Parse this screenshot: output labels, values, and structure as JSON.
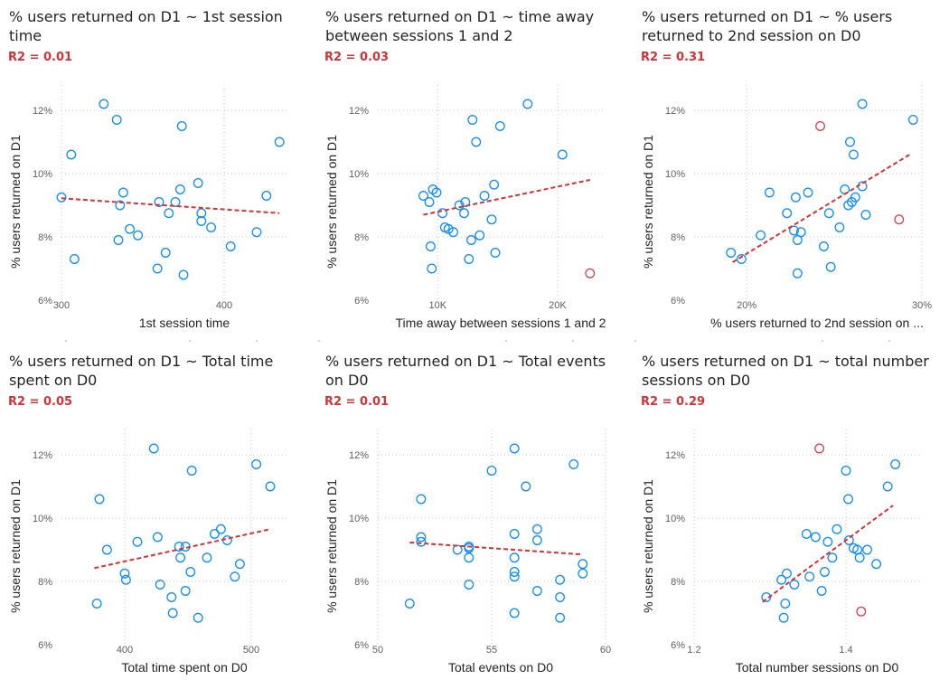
{
  "chart_data": [
    {
      "type": "scatter",
      "title": "% users returned on D1 ~ 1st session time",
      "r2": "R2 = 0.01",
      "xlabel": "1st session time",
      "ylabel": "% users returned on D1",
      "xlim": [
        300,
        440
      ],
      "ylim": [
        6,
        12.8
      ],
      "xticks": [
        300,
        400
      ],
      "xtick_labels": [
        "300",
        "400"
      ],
      "yticks": [
        6,
        8,
        10,
        12
      ],
      "ytick_labels": [
        "6%",
        "8%",
        "10%",
        "12%"
      ],
      "points": [
        [
          300,
          9.25
        ],
        [
          306,
          10.6
        ],
        [
          308,
          7.3
        ],
        [
          326,
          12.2
        ],
        [
          334,
          11.7
        ],
        [
          335,
          7.9
        ],
        [
          336,
          9.0
        ],
        [
          338,
          9.4
        ],
        [
          342,
          8.25
        ],
        [
          347,
          8.05
        ],
        [
          359,
          7.0
        ],
        [
          360,
          9.1
        ],
        [
          364,
          7.5
        ],
        [
          366,
          8.75
        ],
        [
          370,
          9.1
        ],
        [
          373,
          9.5
        ],
        [
          374,
          11.5
        ],
        [
          375,
          6.8
        ],
        [
          384,
          9.7
        ],
        [
          386,
          8.5
        ],
        [
          386,
          8.75
        ],
        [
          392,
          8.3
        ],
        [
          404,
          7.7
        ],
        [
          420,
          8.15
        ],
        [
          426,
          9.3
        ],
        [
          434,
          11.0
        ]
      ],
      "outliers": [],
      "trend": [
        [
          300,
          9.22
        ],
        [
          434,
          8.75
        ]
      ]
    },
    {
      "type": "scatter",
      "title": "% users returned on D1 ~ time away between sessions 1 and 2",
      "r2": "R2 = 0.03",
      "xlabel": "Time away between sessions 1 and 2",
      "ylabel": "% users returned on D1",
      "xlim": [
        5000,
        24000
      ],
      "ylim": [
        6,
        12.8
      ],
      "xticks": [
        10000,
        20000
      ],
      "xtick_labels": [
        "10K",
        "20K"
      ],
      "yticks": [
        6,
        8,
        10,
        12
      ],
      "ytick_labels": [
        "6%",
        "8%",
        "10%",
        "12%"
      ],
      "points": [
        [
          8800,
          9.3
        ],
        [
          9300,
          9.1
        ],
        [
          9400,
          7.7
        ],
        [
          9500,
          7.0
        ],
        [
          9600,
          9.5
        ],
        [
          9900,
          9.4
        ],
        [
          10400,
          8.75
        ],
        [
          10600,
          8.3
        ],
        [
          10900,
          8.25
        ],
        [
          11300,
          8.15
        ],
        [
          11800,
          9.0
        ],
        [
          12200,
          8.75
        ],
        [
          12300,
          9.1
        ],
        [
          12600,
          7.3
        ],
        [
          12800,
          7.9
        ],
        [
          12900,
          11.7
        ],
        [
          13200,
          11.0
        ],
        [
          13500,
          8.05
        ],
        [
          13900,
          9.3
        ],
        [
          14500,
          8.55
        ],
        [
          14700,
          9.65
        ],
        [
          14800,
          7.5
        ],
        [
          15200,
          11.5
        ],
        [
          17500,
          12.2
        ],
        [
          20400,
          10.6
        ]
      ],
      "outliers": [
        [
          22700,
          6.85
        ]
      ],
      "trend": [
        [
          8800,
          8.7
        ],
        [
          22700,
          9.8
        ]
      ]
    },
    {
      "type": "scatter",
      "title": "% users returned on D1 ~ % users returned to 2nd session on D0",
      "r2": "R2 = 0.31",
      "xlabel": "% users returned to 2nd session on ...",
      "ylabel": "% users returned on D1",
      "xlim": [
        17,
        30
      ],
      "ylim": [
        6,
        12.8
      ],
      "xticks": [
        20,
        30
      ],
      "xtick_labels": [
        "20%",
        "30%"
      ],
      "yticks": [
        6,
        8,
        10,
        12
      ],
      "ytick_labels": [
        "6%",
        "8%",
        "10%",
        "12%"
      ],
      "points": [
        [
          19.1,
          7.5
        ],
        [
          19.7,
          7.3
        ],
        [
          20.8,
          8.05
        ],
        [
          21.3,
          9.4
        ],
        [
          22.3,
          8.75
        ],
        [
          22.7,
          8.2
        ],
        [
          22.8,
          9.25
        ],
        [
          22.9,
          7.9
        ],
        [
          22.9,
          6.85
        ],
        [
          23.1,
          8.15
        ],
        [
          23.5,
          9.4
        ],
        [
          24.4,
          7.7
        ],
        [
          24.7,
          8.75
        ],
        [
          24.8,
          7.05
        ],
        [
          25.3,
          8.3
        ],
        [
          25.6,
          9.5
        ],
        [
          25.8,
          9.0
        ],
        [
          25.9,
          11.0
        ],
        [
          26.0,
          9.1
        ],
        [
          26.1,
          10.6
        ],
        [
          26.2,
          9.25
        ],
        [
          26.6,
          9.6
        ],
        [
          26.8,
          8.7
        ],
        [
          26.6,
          12.2
        ],
        [
          29.5,
          11.7
        ]
      ],
      "outliers": [
        [
          24.2,
          11.5
        ],
        [
          28.7,
          8.55
        ]
      ],
      "trend": [
        [
          19.2,
          7.2
        ],
        [
          29.3,
          10.6
        ]
      ]
    },
    {
      "type": "scatter",
      "title": "% users returned on D1 ~ Total time spent on D0",
      "r2": "R2 = 0.05",
      "xlabel": "Total time spent on D0",
      "ylabel": "% users returned on D1",
      "xlim": [
        350,
        530
      ],
      "ylim": [
        6,
        12.8
      ],
      "xticks": [
        400,
        500
      ],
      "xtick_labels": [
        "400",
        "500"
      ],
      "yticks": [
        6,
        8,
        10,
        12
      ],
      "ytick_labels": [
        "6%",
        "8%",
        "10%",
        "12%"
      ],
      "points": [
        [
          378,
          7.3
        ],
        [
          380,
          10.6
        ],
        [
          386,
          9.0
        ],
        [
          400,
          8.25
        ],
        [
          401,
          8.05
        ],
        [
          410,
          9.25
        ],
        [
          423,
          12.2
        ],
        [
          426,
          9.4
        ],
        [
          428,
          7.9
        ],
        [
          437,
          7.5
        ],
        [
          438,
          7.0
        ],
        [
          443,
          9.1
        ],
        [
          444,
          8.75
        ],
        [
          448,
          9.1
        ],
        [
          448,
          7.7
        ],
        [
          452,
          8.3
        ],
        [
          453,
          11.5
        ],
        [
          458,
          6.85
        ],
        [
          465,
          8.75
        ],
        [
          471,
          9.5
        ],
        [
          476,
          9.65
        ],
        [
          481,
          9.3
        ],
        [
          487,
          8.15
        ],
        [
          491,
          8.55
        ],
        [
          504,
          11.7
        ],
        [
          515,
          11.0
        ]
      ],
      "outliers": [],
      "trend": [
        [
          376,
          8.42
        ],
        [
          515,
          9.65
        ]
      ]
    },
    {
      "type": "scatter",
      "title": "% users returned on D1 ~ Total events on D0",
      "r2": "R2 = 0.01",
      "xlabel": "Total events on D0",
      "ylabel": "% users returned on D1",
      "xlim": [
        50,
        60
      ],
      "ylim": [
        6,
        12.8
      ],
      "xticks": [
        50,
        55,
        60
      ],
      "xtick_labels": [
        "50",
        "55",
        "60"
      ],
      "yticks": [
        6,
        8,
        10,
        12
      ],
      "ytick_labels": [
        "6%",
        "8%",
        "10%",
        "12%"
      ],
      "points": [
        [
          51.4,
          7.3
        ],
        [
          51.9,
          10.6
        ],
        [
          51.9,
          9.4
        ],
        [
          51.9,
          9.25
        ],
        [
          53.5,
          9.0
        ],
        [
          54.0,
          9.1
        ],
        [
          54.0,
          9.05
        ],
        [
          54.0,
          8.75
        ],
        [
          54.0,
          7.9
        ],
        [
          55.0,
          11.5
        ],
        [
          56.0,
          12.2
        ],
        [
          56.0,
          9.5
        ],
        [
          56.0,
          8.75
        ],
        [
          56.0,
          8.3
        ],
        [
          56.0,
          8.15
        ],
        [
          56.0,
          7.0
        ],
        [
          56.5,
          11.0
        ],
        [
          57.0,
          9.65
        ],
        [
          57.0,
          9.3
        ],
        [
          57.0,
          7.7
        ],
        [
          58.0,
          8.05
        ],
        [
          58.0,
          7.5
        ],
        [
          58.0,
          6.85
        ],
        [
          58.6,
          11.7
        ],
        [
          59.0,
          8.55
        ],
        [
          59.0,
          8.25
        ]
      ],
      "outliers": [],
      "trend": [
        [
          51.4,
          9.23
        ],
        [
          59.0,
          8.85
        ]
      ]
    },
    {
      "type": "scatter",
      "title": "% users returned on D1 ~ total number sessions on D0",
      "r2": "R2 = 0.29",
      "xlabel": "Total number sessions on D0",
      "ylabel": "% users returned on D1",
      "xlim": [
        1.2,
        1.5
      ],
      "ylim": [
        6,
        12.8
      ],
      "xticks": [
        1.2,
        1.4
      ],
      "xtick_labels": [
        "1.2",
        "1.4"
      ],
      "yticks": [
        6,
        8,
        10,
        12
      ],
      "ytick_labels": [
        "6%",
        "8%",
        "10%",
        "12%"
      ],
      "points": [
        [
          1.295,
          7.5
        ],
        [
          1.315,
          8.05
        ],
        [
          1.318,
          6.85
        ],
        [
          1.32,
          7.3
        ],
        [
          1.322,
          8.25
        ],
        [
          1.332,
          7.9
        ],
        [
          1.348,
          9.5
        ],
        [
          1.352,
          8.15
        ],
        [
          1.36,
          9.4
        ],
        [
          1.368,
          7.7
        ],
        [
          1.372,
          8.3
        ],
        [
          1.376,
          9.25
        ],
        [
          1.382,
          8.75
        ],
        [
          1.388,
          9.65
        ],
        [
          1.4,
          11.5
        ],
        [
          1.403,
          10.6
        ],
        [
          1.404,
          9.3
        ],
        [
          1.41,
          9.05
        ],
        [
          1.415,
          9.0
        ],
        [
          1.418,
          8.75
        ],
        [
          1.428,
          9.0
        ],
        [
          1.44,
          8.55
        ],
        [
          1.455,
          11.0
        ],
        [
          1.465,
          11.7
        ]
      ],
      "outliers": [
        [
          1.365,
          12.2
        ],
        [
          1.42,
          7.05
        ]
      ],
      "trend": [
        [
          1.29,
          7.35
        ],
        [
          1.462,
          10.4
        ]
      ]
    }
  ],
  "colors": {
    "point": "#118dff",
    "outlier": "#d64550",
    "trend": "#d13438",
    "r2": "#d13438"
  }
}
